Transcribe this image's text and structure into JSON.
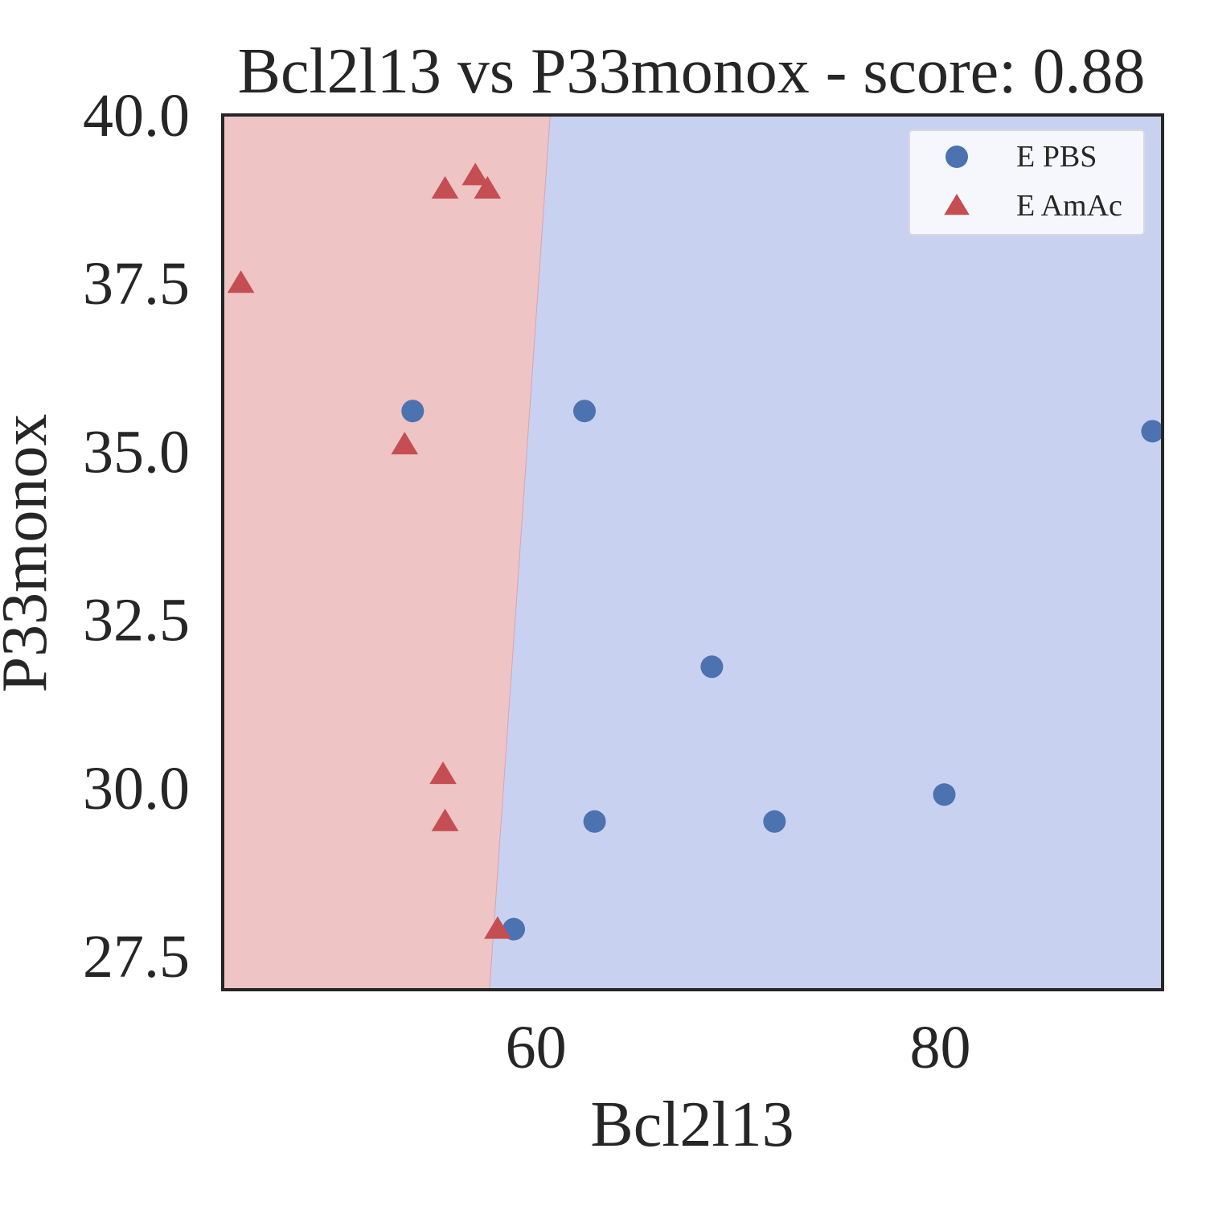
{
  "chart_data": {
    "type": "scatter",
    "title": "Bcl2l13 vs P33monox - score: 0.88",
    "xlabel": "Bcl2l13",
    "ylabel": "P33monox",
    "xlim": [
      44.5,
      91.0
    ],
    "ylim": [
      27.0,
      40.0
    ],
    "xticks": [
      60,
      80
    ],
    "xtick_labels": [
      "60",
      "80"
    ],
    "yticks": [
      27.5,
      30.0,
      32.5,
      35.0,
      37.5,
      40.0
    ],
    "ytick_labels": [
      "27.5",
      "30.0",
      "32.5",
      "35.0",
      "37.5",
      "40.0"
    ],
    "grid": false,
    "legend_position": "top-right",
    "decision_boundary": {
      "left_class": "E AmAc",
      "right_class": "E PBS",
      "line": [
        [
          57.7,
          27.0
        ],
        [
          60.7,
          40.0
        ]
      ],
      "left_color": "#eec4c4",
      "right_color": "#c9d1f1"
    },
    "series": [
      {
        "name": "E PBS",
        "marker": "circle",
        "color": "#4c72b0",
        "points": [
          [
            53.9,
            35.6
          ],
          [
            62.4,
            35.6
          ],
          [
            90.5,
            35.3
          ],
          [
            68.7,
            31.8
          ],
          [
            62.9,
            29.5
          ],
          [
            71.8,
            29.5
          ],
          [
            80.2,
            29.9
          ],
          [
            58.9,
            27.9
          ]
        ]
      },
      {
        "name": "E AmAc",
        "marker": "triangle",
        "color": "#c44e52",
        "points": [
          [
            45.4,
            37.5
          ],
          [
            55.5,
            38.9
          ],
          [
            57.0,
            39.1
          ],
          [
            57.6,
            38.9
          ],
          [
            53.5,
            35.1
          ],
          [
            55.4,
            30.2
          ],
          [
            55.5,
            29.5
          ],
          [
            58.1,
            27.9
          ]
        ]
      }
    ]
  }
}
